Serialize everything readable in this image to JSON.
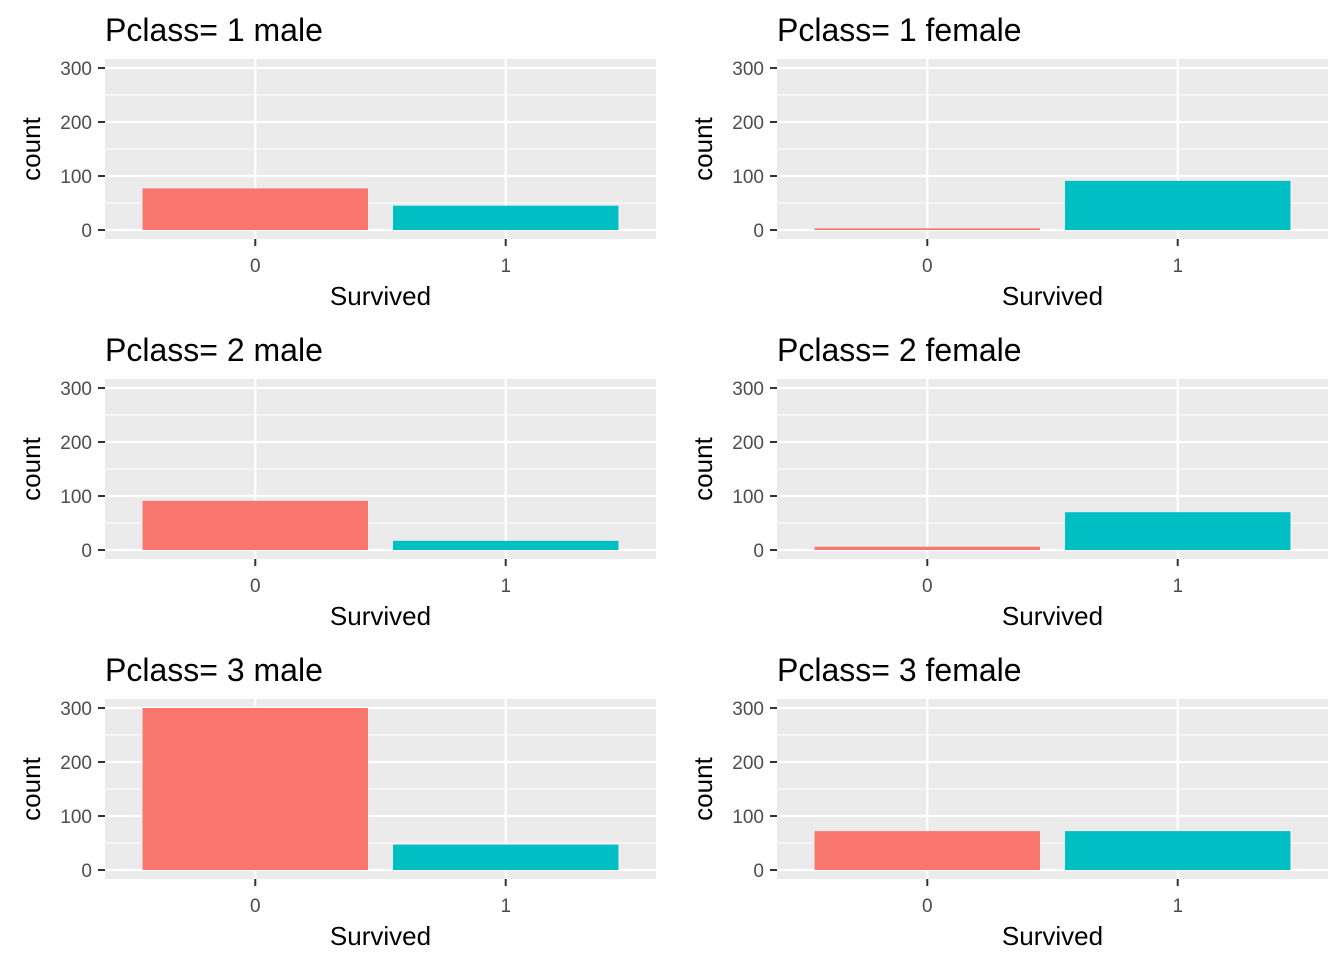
{
  "chart_data": [
    {
      "type": "bar",
      "title": "Pclass= 1 male",
      "xlabel": "Survived",
      "ylabel": "count",
      "categories": [
        "0",
        "1"
      ],
      "values": [
        77,
        45
      ],
      "colors": [
        "#F8766D",
        "#00BFC4"
      ],
      "ylim": [
        0,
        300
      ],
      "yticks": [
        "0",
        "100",
        "200",
        "300"
      ],
      "grid": true
    },
    {
      "type": "bar",
      "title": "Pclass= 1 female",
      "xlabel": "Survived",
      "ylabel": "count",
      "categories": [
        "0",
        "1"
      ],
      "values": [
        3,
        91
      ],
      "colors": [
        "#F8766D",
        "#00BFC4"
      ],
      "ylim": [
        0,
        300
      ],
      "yticks": [
        "0",
        "100",
        "200",
        "300"
      ],
      "grid": true
    },
    {
      "type": "bar",
      "title": "Pclass= 2 male",
      "xlabel": "Survived",
      "ylabel": "count",
      "categories": [
        "0",
        "1"
      ],
      "values": [
        91,
        17
      ],
      "colors": [
        "#F8766D",
        "#00BFC4"
      ],
      "ylim": [
        0,
        300
      ],
      "yticks": [
        "0",
        "100",
        "200",
        "300"
      ],
      "grid": true
    },
    {
      "type": "bar",
      "title": "Pclass= 2 female",
      "xlabel": "Survived",
      "ylabel": "count",
      "categories": [
        "0",
        "1"
      ],
      "values": [
        6,
        70
      ],
      "colors": [
        "#F8766D",
        "#00BFC4"
      ],
      "ylim": [
        0,
        300
      ],
      "yticks": [
        "0",
        "100",
        "200",
        "300"
      ],
      "grid": true
    },
    {
      "type": "bar",
      "title": "Pclass= 3 male",
      "xlabel": "Survived",
      "ylabel": "count",
      "categories": [
        "0",
        "1"
      ],
      "values": [
        300,
        47
      ],
      "colors": [
        "#F8766D",
        "#00BFC4"
      ],
      "ylim": [
        0,
        300
      ],
      "yticks": [
        "0",
        "100",
        "200",
        "300"
      ],
      "grid": true
    },
    {
      "type": "bar",
      "title": "Pclass= 3 female",
      "xlabel": "Survived",
      "ylabel": "count",
      "categories": [
        "0",
        "1"
      ],
      "values": [
        72,
        72
      ],
      "colors": [
        "#F8766D",
        "#00BFC4"
      ],
      "ylim": [
        0,
        300
      ],
      "yticks": [
        "0",
        "100",
        "200",
        "300"
      ],
      "grid": true
    }
  ]
}
